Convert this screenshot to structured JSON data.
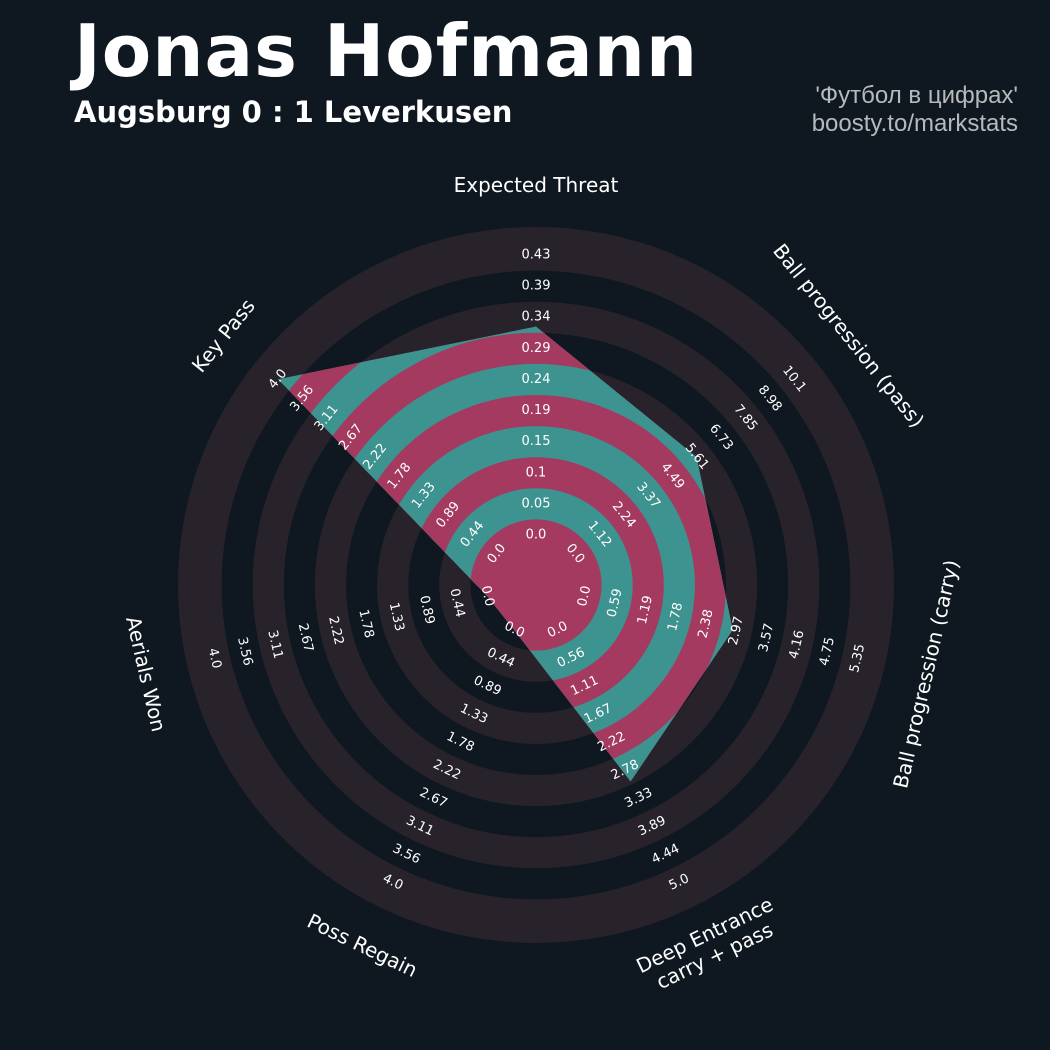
{
  "header": {
    "player": "Jonas Hofmann",
    "match": "Augsburg 0 : 1 Leverkusen",
    "credit_line1": "'Футбол в цифрах'",
    "credit_line2": "boosty.to/markstats"
  },
  "colors": {
    "background": "#0f1821",
    "ring_dark": "#28232b",
    "ring_light": "#0f1821",
    "fill_teal": "#3d9390",
    "fill_pink": "#a43a60"
  },
  "chart_data": {
    "type": "radar",
    "title": "Jonas Hofmann",
    "subtitle": "Augsburg 0 : 1 Leverkusen",
    "params": [
      {
        "label": "Expected Threat",
        "label_lines": [
          "Expected Threat"
        ],
        "min": 0.0,
        "max": 0.43,
        "value": 0.32,
        "ticks": [
          "0.0",
          "0.05",
          "0.1",
          "0.15",
          "0.19",
          "0.24",
          "0.29",
          "0.34",
          "0.39",
          "0.43"
        ]
      },
      {
        "label": "Ball progression (pass)",
        "label_lines": [
          "Ball progression (pass)"
        ],
        "min": 0.0,
        "max": 10.1,
        "value": 5.6,
        "ticks": [
          "0.0",
          "1.12",
          "2.24",
          "3.37",
          "4.49",
          "5.61",
          "6.73",
          "7.85",
          "8.98",
          "10.1"
        ]
      },
      {
        "label": "Ball progression (carry)",
        "label_lines": [
          "Ball progression (carry)"
        ],
        "min": 0.0,
        "max": 5.35,
        "value": 2.9,
        "ticks": [
          "0.0",
          "0.59",
          "1.19",
          "1.78",
          "2.38",
          "2.97",
          "3.57",
          "4.16",
          "4.75",
          "5.35"
        ]
      },
      {
        "label": "Deep Entrance carry + pass",
        "label_lines": [
          "Deep Entrance",
          "carry + pass"
        ],
        "min": 0.0,
        "max": 5.0,
        "value": 3.0,
        "ticks": [
          "0.0",
          "0.56",
          "1.11",
          "1.67",
          "2.22",
          "2.78",
          "3.33",
          "3.89",
          "4.44",
          "5.0"
        ]
      },
      {
        "label": "Poss Regain",
        "label_lines": [
          "Poss Regain"
        ],
        "min": 0.0,
        "max": 4.0,
        "value": 0.0,
        "ticks": [
          "0.0",
          "0.44",
          "0.89",
          "1.33",
          "1.78",
          "2.22",
          "2.67",
          "3.11",
          "3.56",
          "4.0"
        ]
      },
      {
        "label": "Aerials Won",
        "label_lines": [
          "Aerials Won"
        ],
        "min": 0.0,
        "max": 4.0,
        "value": 0.0,
        "ticks": [
          "0.0",
          "0.44",
          "0.89",
          "1.33",
          "1.78",
          "2.22",
          "2.67",
          "3.11",
          "3.56",
          "4.0"
        ]
      },
      {
        "label": "Key Pass",
        "label_lines": [
          "Key Pass"
        ],
        "min": 0.0,
        "max": 4.0,
        "value": 4.0,
        "ticks": [
          "0.0",
          "0.44",
          "0.89",
          "1.33",
          "1.78",
          "2.22",
          "2.67",
          "3.11",
          "3.56",
          "4.0"
        ]
      }
    ]
  }
}
